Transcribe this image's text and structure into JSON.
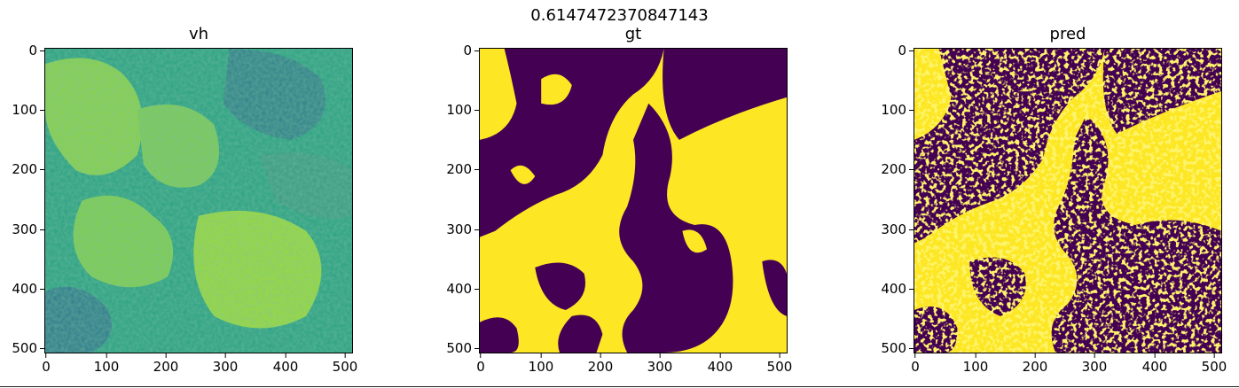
{
  "figure": {
    "suptitle": "0.6147472370847143",
    "panels": [
      {
        "title": "vh",
        "kind": "viridis-noise"
      },
      {
        "title": "gt",
        "kind": "binary-mask"
      },
      {
        "title": "pred",
        "kind": "binary-noisy"
      }
    ],
    "yticks": [
      "0",
      "100",
      "200",
      "300",
      "400",
      "500"
    ],
    "xticks": [
      "0",
      "100",
      "200",
      "300",
      "400",
      "500"
    ]
  },
  "colors": {
    "yellow": "#fde725",
    "purple": "#440154",
    "teal": "#21908d",
    "green": "#5ec962"
  }
}
